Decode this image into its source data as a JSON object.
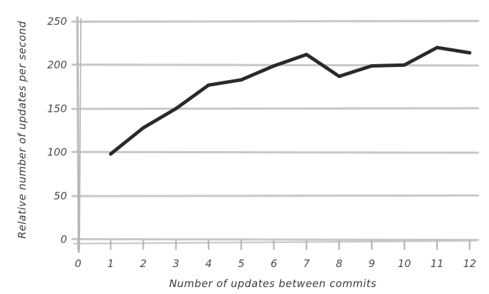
{
  "chart_data": {
    "type": "line",
    "xlabel": "Number of updates between commits",
    "ylabel": "Relative number of updates per second",
    "xlim": [
      0,
      12
    ],
    "ylim": [
      0,
      250
    ],
    "x_ticks": [
      "0",
      "1",
      "2",
      "3",
      "4",
      "5",
      "6",
      "7",
      "8",
      "9",
      "10",
      "11",
      "12"
    ],
    "y_ticks": [
      "0",
      "50",
      "100",
      "150",
      "200",
      "250"
    ],
    "grid": "horizontal",
    "series": [
      {
        "x": [
          1,
          2,
          3,
          4,
          5,
          6,
          7,
          8,
          9,
          10,
          11,
          12
        ],
        "y": [
          98,
          128,
          150,
          177,
          183,
          199,
          212,
          187,
          199,
          200,
          220,
          214
        ]
      }
    ],
    "colors": {
      "line": "#2a2a2a",
      "grid": "#c8c8c8",
      "axis": "#b8b8b8"
    }
  }
}
